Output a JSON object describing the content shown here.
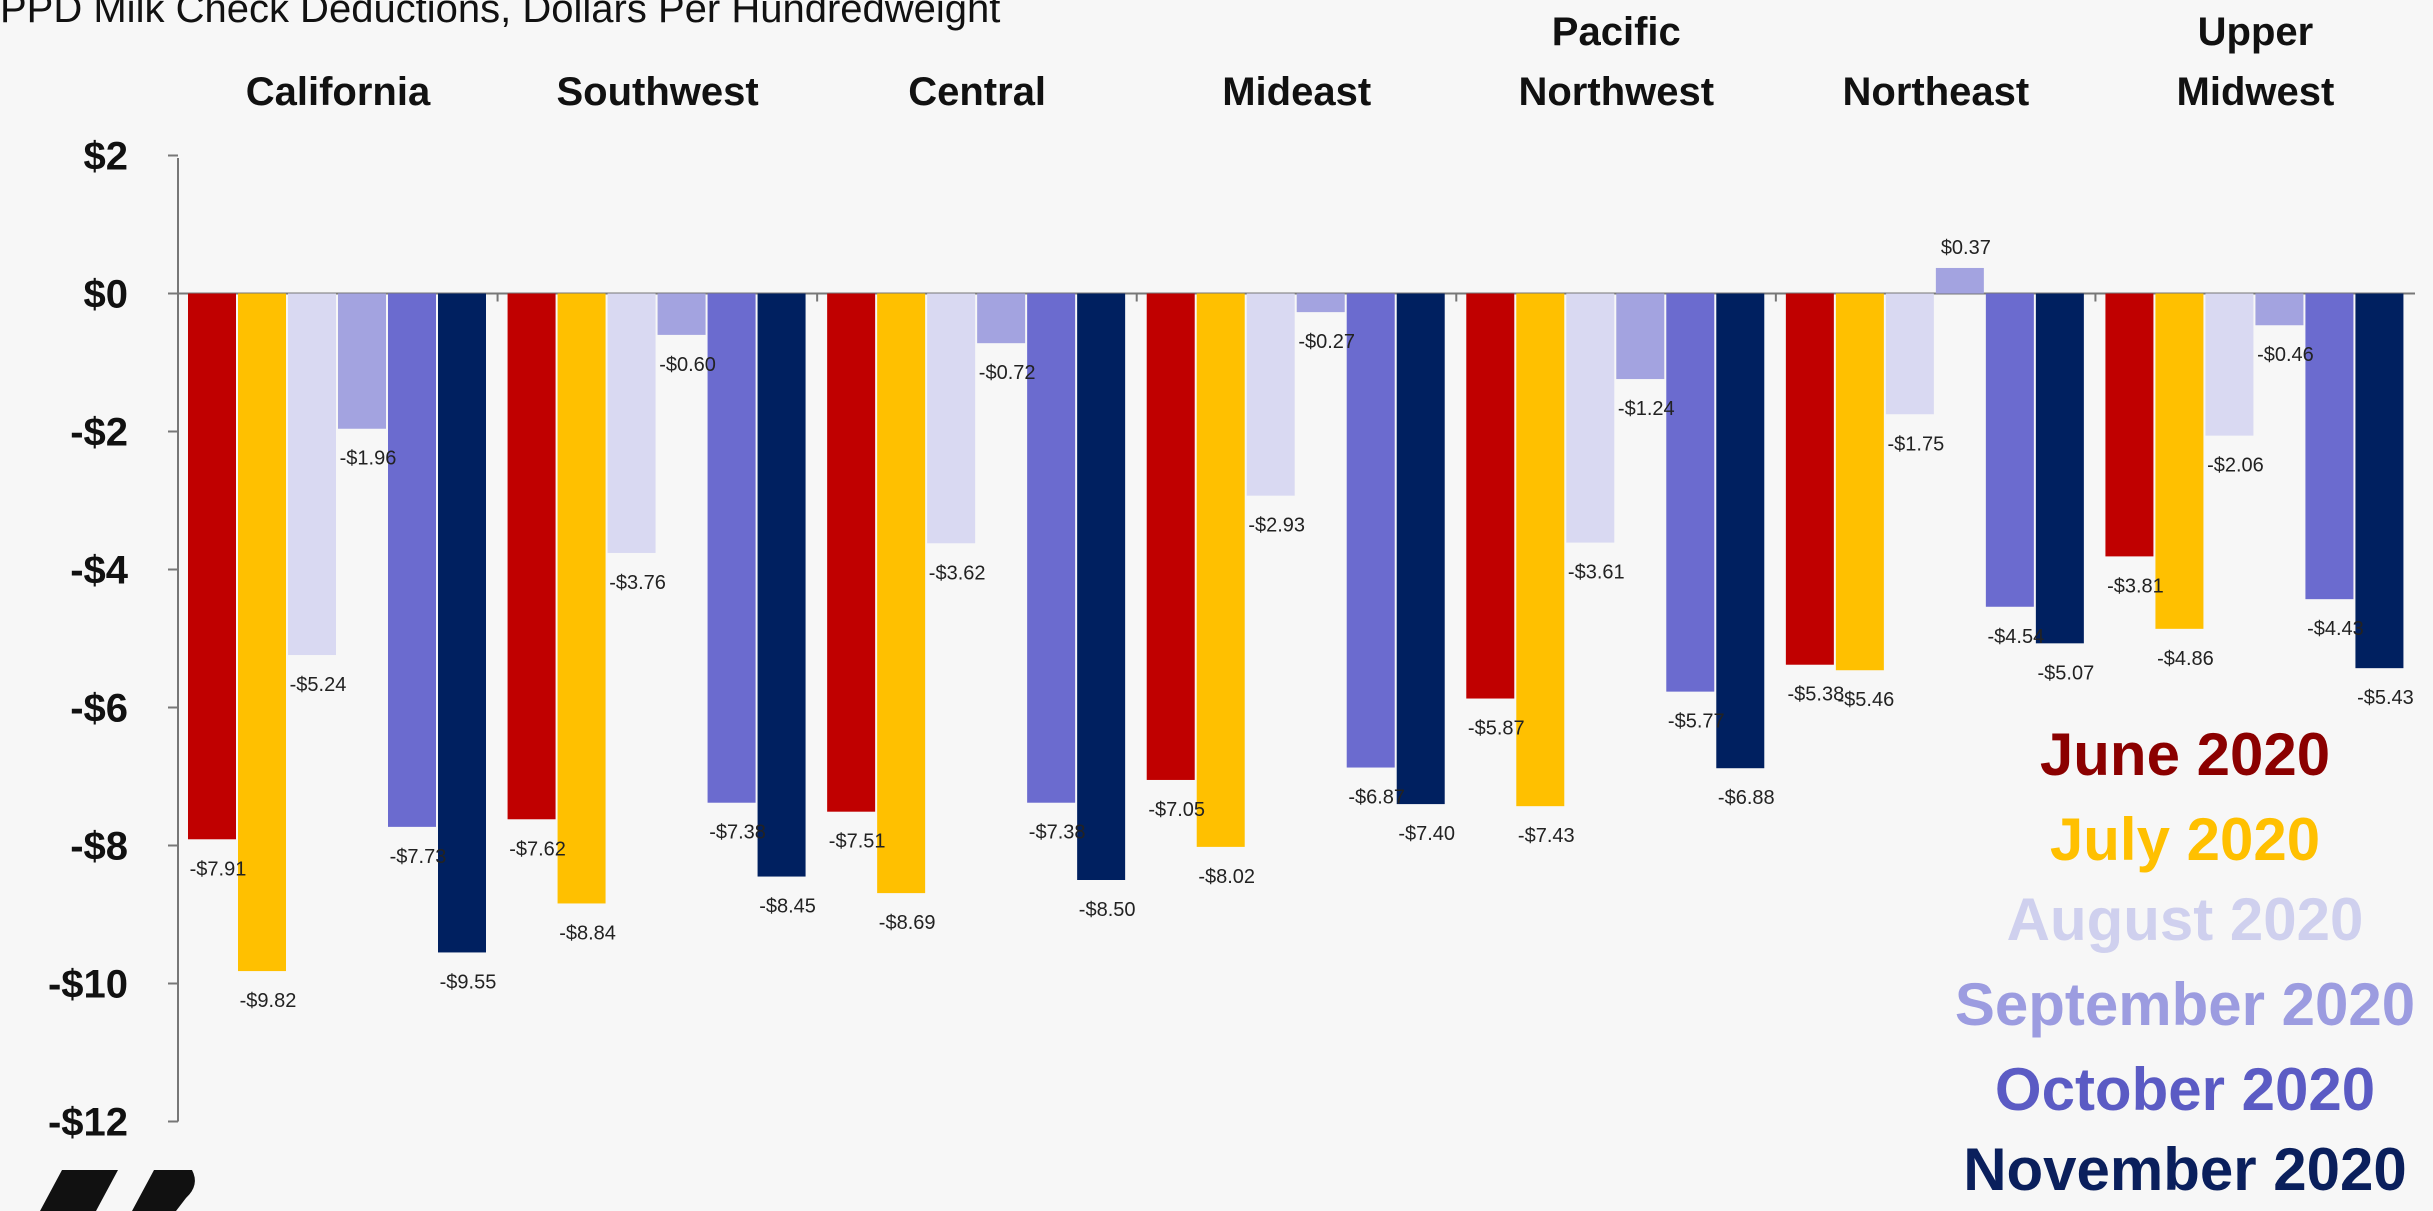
{
  "chart_data": {
    "type": "bar",
    "title": "PPD Milk Check Deductions, Dollars Per Hundredweight",
    "xlabel": "",
    "ylabel": "",
    "ylim": [
      -12,
      2
    ],
    "yticks": [
      2,
      0,
      -2,
      -4,
      -6,
      -8,
      -10,
      -12
    ],
    "ytick_labels": [
      "$2",
      "$0",
      "-$2",
      "-$4",
      "-$6",
      "-$8",
      "-$10",
      "-$12"
    ],
    "grid": false,
    "legend_position": "bottom-right",
    "categories": [
      [
        "California"
      ],
      [
        "Southwest"
      ],
      [
        "Central"
      ],
      [
        "Mideast"
      ],
      [
        "Pacific",
        "Northwest"
      ],
      [
        "Northeast"
      ],
      [
        "Upper",
        "Midwest"
      ]
    ],
    "series": [
      {
        "name": "June 2020",
        "color": "#c00000",
        "legend_color": "#8b0000",
        "values": [
          -7.91,
          -7.62,
          -7.51,
          -7.05,
          -5.87,
          -5.38,
          -3.81
        ],
        "labels": [
          "-$7.91",
          "-$7.62",
          "-$7.51",
          "-$7.05",
          "-$5.87",
          "-$5.38",
          "-$3.81"
        ]
      },
      {
        "name": "July 2020",
        "color": "#ffc000",
        "legend_color": "#ffc000",
        "values": [
          -9.82,
          -8.84,
          -8.69,
          -8.02,
          -7.43,
          -5.46,
          -4.86
        ],
        "labels": [
          "-$9.82",
          "-$8.84",
          "-$8.69",
          "-$8.02",
          "-$7.43",
          "-$5.46",
          "-$4.86"
        ]
      },
      {
        "name": "August 2020",
        "color": "#d9d9f2",
        "legend_color": "#cfd0ee",
        "values": [
          -5.24,
          -3.76,
          -3.62,
          -2.93,
          -3.61,
          -1.75,
          -2.06
        ],
        "labels": [
          "-$5.24",
          "-$3.76",
          "-$3.62",
          "-$2.93",
          "-$3.61",
          "-$1.75",
          "-$2.06"
        ]
      },
      {
        "name": "September 2020",
        "color": "#a3a3e0",
        "legend_color": "#9c9ce0",
        "values": [
          -1.96,
          -0.6,
          -0.72,
          -0.27,
          -1.24,
          0.37,
          -0.46
        ],
        "labels": [
          "-$1.96",
          "-$0.60",
          "-$0.72",
          "-$0.27",
          "-$1.24",
          "$0.37",
          "-$0.46"
        ]
      },
      {
        "name": "October 2020",
        "color": "#6b6bcf",
        "legend_color": "#5b5bc4",
        "values": [
          -7.73,
          -7.38,
          -7.38,
          -6.87,
          -5.77,
          -4.54,
          -4.43
        ],
        "labels": [
          "-$7.73",
          "-$7.38",
          "-$7.38",
          "-$6.87",
          "-$5.77",
          "-$4.54",
          "-$4.43"
        ]
      },
      {
        "name": "November 2020",
        "color": "#002060",
        "legend_color": "#0a1f5c",
        "values": [
          -9.55,
          -8.45,
          -8.5,
          -7.4,
          -6.88,
          -5.07,
          -5.43
        ],
        "labels": [
          "-$9.55",
          "-$8.45",
          "-$8.50",
          "-$7.40",
          "-$6.88",
          "-$5.07",
          "-$5.43"
        ]
      }
    ]
  }
}
